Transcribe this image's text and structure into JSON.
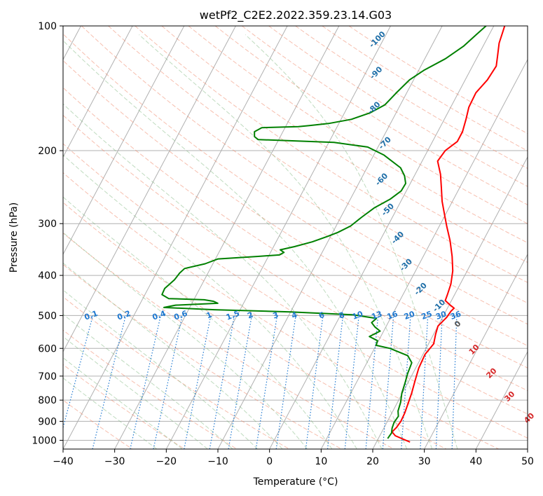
{
  "chart_data": {
    "type": "line",
    "title": "wetPf2_C2E2.2022.359.23.14.G03",
    "xlabel": "Temperature (°C)",
    "ylabel": "Pressure (hPa)",
    "xlim": [
      -40,
      50
    ],
    "ylim": [
      1050,
      100
    ],
    "y_scale": "log",
    "grid": true,
    "x_ticks": [
      -40,
      -30,
      -20,
      -10,
      0,
      10,
      20,
      30,
      40,
      50
    ],
    "y_ticks": [
      100,
      200,
      300,
      400,
      500,
      600,
      700,
      800,
      900,
      1000
    ],
    "skew_lines": [
      -100,
      -90,
      -80,
      -70,
      -60,
      -50,
      -40,
      -30,
      -20,
      -10,
      0,
      10,
      20,
      30,
      40,
      50,
      60,
      70,
      80,
      90,
      100,
      110,
      120,
      130,
      140
    ],
    "dry_adiabats": [
      -30,
      -20,
      -10,
      0,
      10,
      20,
      30,
      40,
      50,
      60,
      70,
      80,
      90,
      100,
      110,
      120,
      130,
      140,
      150,
      160,
      170,
      180,
      190,
      200
    ],
    "moist_adiabats": [
      -25,
      -20,
      -15,
      -10,
      -5,
      0,
      5,
      10,
      15,
      20,
      25,
      30,
      35
    ],
    "mixing_ratios": [
      0.1,
      0.2,
      0.4,
      0.6,
      1,
      1.5,
      2,
      3,
      4,
      6,
      8,
      10,
      13,
      16,
      20,
      25,
      30,
      36
    ],
    "mixing_ratio_labels": [
      "0.1",
      "0.2",
      "0.4",
      "0.6",
      "1",
      "1.5",
      "2",
      "3",
      "4",
      "6",
      "8",
      "10",
      "13",
      "16",
      "20",
      "25",
      "30",
      "36"
    ],
    "isotherm_labels": [
      {
        "text": "-100",
        "x": -21.1,
        "p": 108
      },
      {
        "text": "-90",
        "x": -17.9,
        "p": 130
      },
      {
        "text": "-80",
        "x": -14.7,
        "p": 158
      },
      {
        "text": "-70",
        "x": -9.0,
        "p": 192
      },
      {
        "text": "-60",
        "x": -5.9,
        "p": 235
      },
      {
        "text": "-50",
        "x": -1.6,
        "p": 278
      },
      {
        "text": "-40",
        "x": 3.2,
        "p": 325
      },
      {
        "text": "-30",
        "x": 7.6,
        "p": 378
      },
      {
        "text": "-20",
        "x": 12.9,
        "p": 432
      },
      {
        "text": "-10",
        "x": 18.2,
        "p": 474
      },
      {
        "text": "0",
        "x": 23.7,
        "p": 525
      },
      {
        "text": "10",
        "x": 29.5,
        "p": 605
      },
      {
        "text": "20",
        "x": 35.3,
        "p": 690
      },
      {
        "text": "30",
        "x": 41.2,
        "p": 785
      },
      {
        "text": "40",
        "x": 47.2,
        "p": 885
      }
    ],
    "series": [
      {
        "color": "#ff0000",
        "points": [
          [
            26.5,
            1010
          ],
          [
            25.0,
            995
          ],
          [
            23.0,
            975
          ],
          [
            22.0,
            955
          ],
          [
            22.4,
            930
          ],
          [
            22.6,
            900
          ],
          [
            22.5,
            860
          ],
          [
            22.2,
            820
          ],
          [
            21.8,
            770
          ],
          [
            21.2,
            720
          ],
          [
            20.6,
            670
          ],
          [
            20.4,
            620
          ],
          [
            21.0,
            585
          ],
          [
            20.4,
            555
          ],
          [
            20.0,
            530
          ],
          [
            20.8,
            505
          ],
          [
            21.0,
            488
          ],
          [
            21.3,
            480
          ],
          [
            20.0,
            470
          ],
          [
            18.8,
            460
          ],
          [
            18.6,
            445
          ],
          [
            18.2,
            420
          ],
          [
            17.2,
            390
          ],
          [
            15.6,
            360
          ],
          [
            13.6,
            330
          ],
          [
            11.5,
            305
          ],
          [
            9.8,
            285
          ],
          [
            8.0,
            265
          ],
          [
            6.4,
            245
          ],
          [
            4.9,
            228
          ],
          [
            3.0,
            212
          ],
          [
            3.4,
            200
          ],
          [
            4.8,
            190
          ],
          [
            4.8,
            180
          ],
          [
            4.2,
            168
          ],
          [
            3.5,
            157
          ],
          [
            3.4,
            145
          ],
          [
            4.3,
            135
          ],
          [
            4.6,
            125
          ],
          [
            3.8,
            118
          ],
          [
            2.8,
            110
          ],
          [
            2.4,
            104
          ],
          [
            2.1,
            100
          ]
        ]
      },
      {
        "color": "#008000",
        "points": [
          [
            21.8,
            990
          ],
          [
            22.0,
            960
          ],
          [
            21.6,
            935
          ],
          [
            21.4,
            905
          ],
          [
            21.6,
            875
          ],
          [
            21.0,
            850
          ],
          [
            20.6,
            810
          ],
          [
            19.9,
            770
          ],
          [
            19.5,
            730
          ],
          [
            19.0,
            690
          ],
          [
            18.7,
            650
          ],
          [
            17.2,
            625
          ],
          [
            13.0,
            600
          ],
          [
            10.0,
            590
          ],
          [
            9.8,
            575
          ],
          [
            7.8,
            562
          ],
          [
            9.3,
            545
          ],
          [
            7.9,
            533
          ],
          [
            6.8,
            520
          ],
          [
            7.3,
            508
          ],
          [
            2.5,
            498
          ],
          [
            -10.0,
            490
          ],
          [
            -25.0,
            484
          ],
          [
            -35.0,
            478
          ],
          [
            -33.0,
            472
          ],
          [
            -25.0,
            467
          ],
          [
            -26.0,
            462
          ],
          [
            -28.0,
            458
          ],
          [
            -35.0,
            455
          ],
          [
            -36.7,
            445
          ],
          [
            -36.8,
            430
          ],
          [
            -35.8,
            410
          ],
          [
            -35.5,
            395
          ],
          [
            -35.0,
            385
          ],
          [
            -31.5,
            375
          ],
          [
            -29.5,
            365
          ],
          [
            -22.0,
            360
          ],
          [
            -18.0,
            357
          ],
          [
            -17.4,
            352
          ],
          [
            -18.4,
            347
          ],
          [
            -16.0,
            341
          ],
          [
            -13.0,
            332
          ],
          [
            -10.6,
            322
          ],
          [
            -9.0,
            315
          ],
          [
            -7.2,
            304
          ],
          [
            -6.0,
            290
          ],
          [
            -4.5,
            275
          ],
          [
            -2.3,
            262
          ],
          [
            -1.0,
            250
          ],
          [
            -0.9,
            240
          ],
          [
            -1.9,
            230
          ],
          [
            -3.5,
            220
          ],
          [
            -8.0,
            205
          ],
          [
            -12.0,
            196
          ],
          [
            -19.0,
            191
          ],
          [
            -34.0,
            188
          ],
          [
            -35.0,
            185
          ],
          [
            -35.5,
            180
          ],
          [
            -34.5,
            176
          ],
          [
            -27.5,
            175
          ],
          [
            -25.5,
            174
          ],
          [
            -22.0,
            172
          ],
          [
            -18.0,
            168
          ],
          [
            -15.0,
            162
          ],
          [
            -13.0,
            155
          ],
          [
            -12.0,
            145
          ],
          [
            -10.8,
            135
          ],
          [
            -9.0,
            128
          ],
          [
            -6.0,
            120
          ],
          [
            -3.8,
            112
          ],
          [
            -2.5,
            105
          ],
          [
            -1.5,
            100
          ]
        ]
      }
    ]
  }
}
